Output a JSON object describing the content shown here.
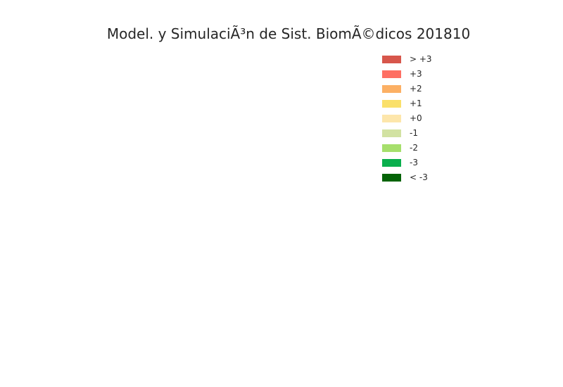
{
  "chart_data": {
    "type": "heatmap",
    "title": "Model. y SimulaciÃ³n de Sist. BiomÃ©dicos 201810",
    "xlabel": "",
    "ylabel": "",
    "grid": false,
    "legend_position": "top-right",
    "legend": [
      {
        "label": "> +3",
        "color": "#d7564b"
      },
      {
        "label": "+3",
        "color": "#fe6f63"
      },
      {
        "label": "+2",
        "color": "#fcb064"
      },
      {
        "label": "+1",
        "color": "#fae06a"
      },
      {
        "label": "+0",
        "color": "#fde6ab"
      },
      {
        "label": "-1",
        "color": "#d2e2a2"
      },
      {
        "label": "-2",
        "color": "#a6df6c"
      },
      {
        "label": "-3",
        "color": "#0aaf4d"
      },
      {
        "label": "< -3",
        "color": "#046307"
      }
    ]
  }
}
